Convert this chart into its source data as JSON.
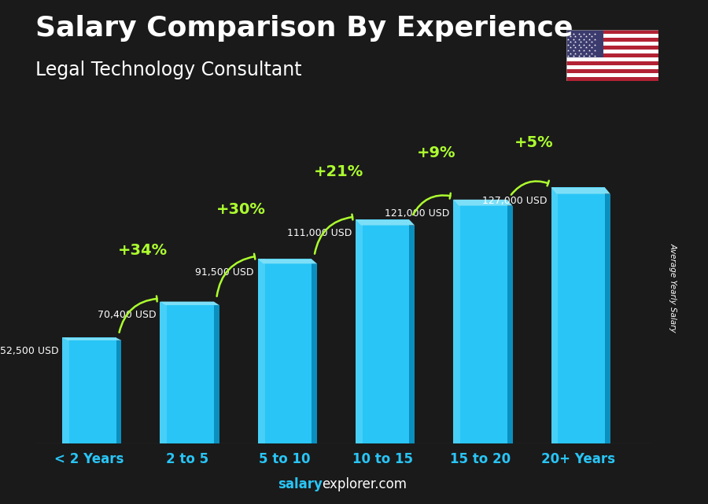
{
  "title": "Salary Comparison By Experience",
  "subtitle": "Legal Technology Consultant",
  "categories": [
    "< 2 Years",
    "2 to 5",
    "5 to 10",
    "10 to 15",
    "15 to 20",
    "20+ Years"
  ],
  "values": [
    52500,
    70400,
    91500,
    111000,
    121000,
    127000
  ],
  "value_labels": [
    "52,500 USD",
    "70,400 USD",
    "91,500 USD",
    "111,000 USD",
    "121,000 USD",
    "127,000 USD"
  ],
  "pct_changes": [
    "+34%",
    "+30%",
    "+21%",
    "+9%",
    "+5%"
  ],
  "bar_front_color": "#29C5F6",
  "bar_side_color": "#0A8FBF",
  "bar_top_color": "#7DDFF7",
  "bar_highlight_color": "#60D8F8",
  "bg_color": "#1a1a1a",
  "title_color": "#FFFFFF",
  "subtitle_color": "#FFFFFF",
  "value_label_color": "#FFFFFF",
  "pct_color": "#ADFF2F",
  "arrow_color": "#ADFF2F",
  "xtick_color": "#29C5F6",
  "ylabel_text": "Average Yearly Salary",
  "ylabel_color": "#FFFFFF",
  "footer_salary_color": "#29C5F6",
  "footer_explorer_color": "#FFFFFF",
  "ylim": [
    0,
    155000
  ],
  "title_fontsize": 26,
  "subtitle_fontsize": 17,
  "pct_fontsize": 14,
  "value_label_fontsize": 9,
  "xtick_fontsize": 12
}
